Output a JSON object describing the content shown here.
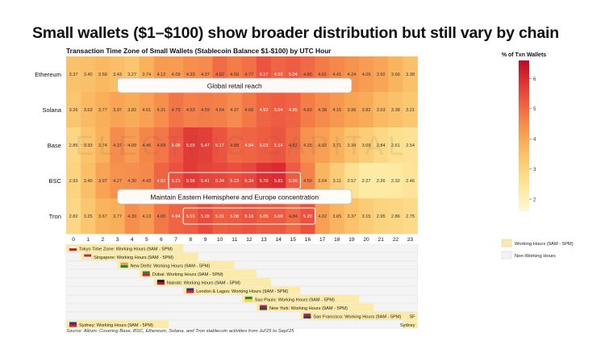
{
  "headline": "Small wallets ($1–$100) show broader distribution but still vary by chain",
  "footer": {
    "source": "Source: Allium. Covering Base, BSC, Ethereum, Solana, and Tron stablecoin activities from Jul'25 to Sept'25"
  },
  "annotations": {
    "retail": "Global retail reach",
    "eastern": "Maintain Eastern Hemisphere and Europe concentration"
  },
  "watermark": "ELECTRIC CAPITAL",
  "timezones": [
    {
      "label": "Tokyo Time Zone: Working Hours (9AM - 5PM)",
      "flag": "japan-flag",
      "start": 0,
      "end": 8
    },
    {
      "label": "Singapore: Working Hours (9AM - 5PM)",
      "flag": "singapore-flag",
      "start": 1,
      "end": 9
    },
    {
      "label": "New Delhi: Working Hours (9AM - 5PM)",
      "flag": "india-flag",
      "start": 3.5,
      "end": 11.5
    },
    {
      "label": "Dubai: Working Hours (9AM - 5PM)",
      "flag": "uae-flag",
      "start": 5,
      "end": 13
    },
    {
      "label": "Nairobi: Working Hours (9AM - 5PM)",
      "flag": "kenya-flag",
      "start": 6,
      "end": 14
    },
    {
      "label": "London & Lagos: Working Hours (9AM - 5PM)",
      "flag": "uk-nigeria-flag",
      "start": 8,
      "end": 16
    },
    {
      "label": "Sao Paulo: Working Hours (9AM - 5PM)",
      "flag": "brazil-flag",
      "start": 12,
      "end": 20
    },
    {
      "label": "New York: Working Hours (9AM - 5PM)",
      "flag": "us-flag",
      "start": 13,
      "end": 21
    },
    {
      "label": "San Francisco: Working Hours (9AM - 5PM)",
      "flag": "us-flag",
      "start": 16,
      "end": 24,
      "wrap_label": "SF"
    },
    {
      "label": "Sydney: Working Hours (9AM - 5PM)",
      "flag": "australia-flag",
      "start": -1,
      "end": 7,
      "wrap_label": "Sydney"
    }
  ],
  "legend2": {
    "working": "Working Hours (9AM - 5PM)",
    "nonworking": "Non-Working Hours"
  },
  "colors": {
    "working": "#fbeaa8",
    "nonworking": "#f4f4f4",
    "scale": [
      "#fff8d6",
      "#fde9a0",
      "#fcd07a",
      "#f9b15a",
      "#f5864a",
      "#ec5340",
      "#d7262f",
      "#b40f24"
    ]
  },
  "chart_data": {
    "type": "heatmap",
    "title": "Transaction Time Zone of Small Wallets (Stablecoin Balance $1-$100) by UTC Hour",
    "colorbar_label": "% of Txn Wallets",
    "colorbar_ticks": [
      2,
      3,
      4,
      5,
      6
    ],
    "vmin": 1.6,
    "vmax": 6.6,
    "x": [
      "0",
      "1",
      "2",
      "3",
      "4",
      "5",
      "6",
      "7",
      "8",
      "9",
      "10",
      "11",
      "12",
      "13",
      "14",
      "15",
      "16",
      "17",
      "18",
      "19",
      "20",
      "21",
      "22",
      "23"
    ],
    "y": [
      "Ethereum",
      "Solana",
      "Base",
      "BSC",
      "Tron"
    ],
    "values": [
      [
        3.37,
        3.4,
        3.58,
        3.43,
        3.27,
        3.74,
        4.12,
        4.09,
        4.33,
        4.37,
        4.82,
        4.59,
        4.77,
        5.17,
        4.93,
        5.04,
        4.85,
        4.61,
        4.41,
        4.24,
        4.09,
        3.92,
        3.66,
        3.38
      ],
      [
        3.26,
        3.53,
        3.77,
        3.97,
        3.82,
        4.01,
        4.31,
        4.7,
        4.53,
        4.59,
        4.54,
        4.37,
        4.66,
        4.92,
        5.04,
        4.95,
        4.6,
        4.38,
        4.15,
        3.96,
        3.82,
        3.53,
        3.38,
        3.21
      ],
      [
        2.85,
        3.33,
        3.74,
        4.37,
        4.09,
        4.46,
        4.68,
        5.06,
        5.55,
        5.47,
        5.17,
        4.88,
        4.94,
        5.03,
        5.14,
        4.82,
        4.25,
        4.02,
        3.71,
        3.34,
        3.09,
        2.84,
        2.61,
        2.54
      ],
      [
        2.93,
        3.4,
        3.97,
        4.27,
        4.3,
        4.43,
        4.92,
        5.21,
        5.56,
        5.41,
        5.34,
        5.23,
        5.34,
        5.7,
        5.81,
        5.06,
        4.5,
        3.64,
        3.11,
        2.57,
        2.27,
        2.26,
        2.32,
        2.46
      ],
      [
        2.82,
        3.25,
        3.67,
        3.77,
        4.3,
        4.13,
        4.65,
        4.94,
        5.01,
        5.28,
        5.01,
        5.08,
        5.18,
        5.05,
        5.09,
        4.84,
        5.2,
        4.02,
        3.65,
        3.37,
        3.15,
        2.95,
        2.86,
        2.75
      ]
    ]
  }
}
